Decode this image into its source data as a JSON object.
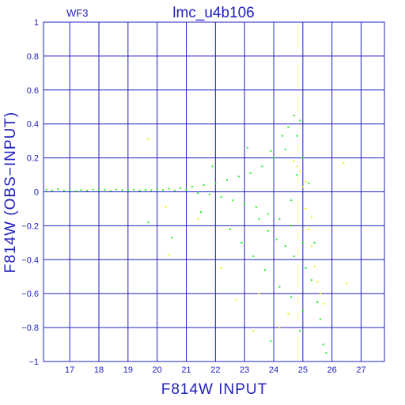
{
  "chart_data": {
    "type": "scatter",
    "title": "lmc_u4b106",
    "panel_label": "WF3",
    "xlabel": "F814W INPUT",
    "ylabel": "F814W (OBS−INPUT)",
    "xlim": [
      16.1,
      27.8
    ],
    "ylim": [
      -1,
      1
    ],
    "x_ticks": [
      17,
      18,
      19,
      20,
      21,
      22,
      23,
      24,
      25,
      26,
      27
    ],
    "x_tick_labels": [
      "17",
      "18",
      "19",
      "20",
      "21",
      "22",
      "23",
      "24",
      "25",
      "26",
      "27"
    ],
    "y_ticks": [
      -1,
      -0.8,
      -0.6,
      -0.4,
      -0.2,
      0,
      0.2,
      0.4,
      0.6,
      0.8,
      1
    ],
    "y_tick_labels": [
      "−1",
      "−0.8",
      "−0.6",
      "−0.4",
      "−0.2",
      "0",
      "0.2",
      "0.4",
      "0.6",
      "0.8",
      "1"
    ],
    "grid": true,
    "colors": {
      "frame": "#2020c0",
      "grid": "#2020c0",
      "primary_points": "#22ee22",
      "secondary_points": "#f5f000"
    },
    "series": [
      {
        "color": "#22ee22",
        "values": [
          [
            16.2,
            0.012
          ],
          [
            16.4,
            0.008
          ],
          [
            16.6,
            0.015
          ],
          [
            16.8,
            0.006
          ],
          [
            17.0,
            0.01
          ],
          [
            17.2,
            0.004
          ],
          [
            17.4,
            0.011
          ],
          [
            17.6,
            0.007
          ],
          [
            17.8,
            0.013
          ],
          [
            18.0,
            0.009
          ],
          [
            18.2,
            0.012
          ],
          [
            18.4,
            0.006
          ],
          [
            18.6,
            0.014
          ],
          [
            18.8,
            0.01
          ],
          [
            19.0,
            0.008
          ],
          [
            19.2,
            0.013
          ],
          [
            19.4,
            0.007
          ],
          [
            19.6,
            0.012
          ],
          [
            19.8,
            0.009
          ],
          [
            20.0,
            0.015
          ],
          [
            20.2,
            0.01
          ],
          [
            20.4,
            0.018
          ],
          [
            20.6,
            0.008
          ],
          [
            20.8,
            0.022
          ],
          [
            21.0,
            0.012
          ],
          [
            21.2,
            0.03
          ],
          [
            21.4,
            -0.008
          ],
          [
            21.6,
            0.04
          ],
          [
            21.8,
            -0.015
          ],
          [
            22.0,
            0.05
          ],
          [
            22.2,
            -0.03
          ],
          [
            22.4,
            0.07
          ],
          [
            22.6,
            -0.05
          ],
          [
            22.8,
            0.09
          ],
          [
            23.0,
            -0.07
          ],
          [
            23.2,
            0.11
          ],
          [
            23.4,
            -0.09
          ],
          [
            23.6,
            0.15
          ],
          [
            23.8,
            -0.13
          ],
          [
            24.0,
            0.2
          ],
          [
            24.2,
            -0.16
          ],
          [
            24.4,
            0.25
          ],
          [
            24.6,
            -0.2
          ],
          [
            24.8,
            0.33
          ],
          [
            25.0,
            -0.3
          ],
          [
            24.3,
            0.33
          ],
          [
            24.5,
            0.38
          ],
          [
            24.7,
            0.45
          ],
          [
            24.9,
            0.42
          ],
          [
            23.9,
            0.24
          ],
          [
            23.5,
            -0.16
          ],
          [
            23.8,
            -0.23
          ],
          [
            24.1,
            -0.28
          ],
          [
            24.4,
            -0.32
          ],
          [
            24.7,
            -0.38
          ],
          [
            25.1,
            -0.45
          ],
          [
            25.3,
            -0.52
          ],
          [
            25.5,
            -0.65
          ],
          [
            25.6,
            -0.75
          ],
          [
            25.7,
            -0.9
          ],
          [
            25.4,
            -0.3
          ],
          [
            25.2,
            0.05
          ],
          [
            25.0,
            0.2
          ],
          [
            24.8,
            0.1
          ],
          [
            24.6,
            -0.05
          ],
          [
            22.5,
            -0.22
          ],
          [
            22.9,
            -0.3
          ],
          [
            23.3,
            -0.38
          ],
          [
            23.7,
            -0.46
          ],
          [
            24.2,
            -0.56
          ],
          [
            24.6,
            -0.62
          ],
          [
            25.0,
            -0.7
          ],
          [
            24.9,
            -0.82
          ],
          [
            23.9,
            -0.88
          ],
          [
            25.8,
            -0.95
          ],
          [
            21.5,
            -0.12
          ],
          [
            20.5,
            -0.27
          ],
          [
            19.7,
            -0.18
          ],
          [
            21.9,
            0.15
          ],
          [
            23.1,
            0.26
          ]
        ]
      },
      {
        "color": "#f5f000",
        "values": [
          [
            19.7,
            0.31
          ],
          [
            20.3,
            -0.09
          ],
          [
            20.4,
            -0.37
          ],
          [
            21.4,
            -0.16
          ],
          [
            22.2,
            -0.45
          ],
          [
            22.7,
            -0.64
          ],
          [
            23.3,
            -0.82
          ],
          [
            23.5,
            -0.6
          ],
          [
            24.2,
            -0.8
          ],
          [
            24.5,
            -0.72
          ],
          [
            24.8,
            0.15
          ],
          [
            25.0,
            0.03
          ],
          [
            25.1,
            -0.1
          ],
          [
            25.2,
            -0.22
          ],
          [
            25.3,
            -0.32
          ],
          [
            25.4,
            -0.44
          ],
          [
            25.5,
            -0.53
          ],
          [
            25.6,
            -0.6
          ],
          [
            25.7,
            -0.66
          ],
          [
            26.4,
            0.17
          ],
          [
            26.5,
            -0.54
          ],
          [
            24.9,
            0.12
          ],
          [
            25.1,
            0.06
          ],
          [
            24.7,
            0.18
          ],
          [
            25.3,
            -0.15
          ]
        ]
      }
    ]
  }
}
